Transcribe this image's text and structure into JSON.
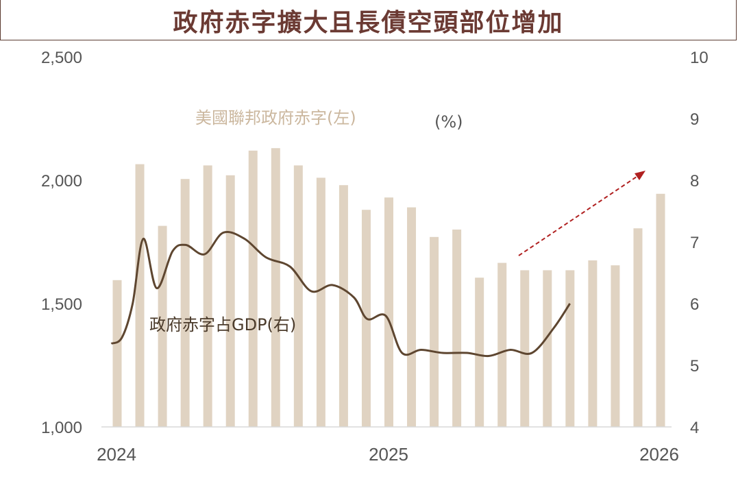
{
  "title": "政府赤字擴大且長債空頭部位增加",
  "colors": {
    "bars": "#e0d3c2",
    "line": "#5e4630",
    "arrow": "#b02020",
    "title": "#6b3a33"
  },
  "chart_data": {
    "type": "bar+line",
    "left_axis": {
      "min": 1000,
      "max": 2500,
      "ticks": [
        "1,000",
        "1,500",
        "2,000",
        "2,500"
      ]
    },
    "right_axis": {
      "min": 4,
      "max": 10,
      "unit_label": "(%)",
      "ticks": [
        "4",
        "5",
        "6",
        "7",
        "8",
        "9",
        "10"
      ]
    },
    "x_ticks": [
      "2024",
      "2025",
      "2026"
    ],
    "series": [
      {
        "name": "美國聯邦政府赤字(左)",
        "type": "bar",
        "axis": "left",
        "values": [
          1595,
          2065,
          1815,
          2005,
          2060,
          2020,
          2120,
          2130,
          2060,
          2010,
          1980,
          1880,
          1930,
          1890,
          1770,
          1800,
          1605,
          1665,
          1635,
          1635,
          1635,
          1675,
          1655,
          1805,
          1945
        ]
      },
      {
        "name": "政府赤字占GDP(右)",
        "type": "line",
        "axis": "right",
        "points": [
          [
            2023.96,
            5.35
          ],
          [
            2024.0,
            5.45
          ],
          [
            2024.04,
            6.0
          ],
          [
            2024.08,
            7.05
          ],
          [
            2024.13,
            6.25
          ],
          [
            2024.19,
            6.85
          ],
          [
            2024.24,
            6.95
          ],
          [
            2024.31,
            6.8
          ],
          [
            2024.38,
            7.15
          ],
          [
            2024.46,
            7.05
          ],
          [
            2024.54,
            6.75
          ],
          [
            2024.63,
            6.6
          ],
          [
            2024.71,
            6.2
          ],
          [
            2024.79,
            6.3
          ],
          [
            2024.87,
            6.1
          ],
          [
            2024.92,
            5.75
          ],
          [
            2024.99,
            5.8
          ],
          [
            2025.05,
            5.2
          ],
          [
            2025.12,
            5.25
          ],
          [
            2025.2,
            5.2
          ],
          [
            2025.29,
            5.2
          ],
          [
            2025.37,
            5.15
          ],
          [
            2025.45,
            5.25
          ],
          [
            2025.53,
            5.2
          ],
          [
            2025.61,
            5.6
          ],
          [
            2025.67,
            6.0
          ]
        ]
      }
    ],
    "annotations": {
      "arrow": "up-trend"
    }
  }
}
